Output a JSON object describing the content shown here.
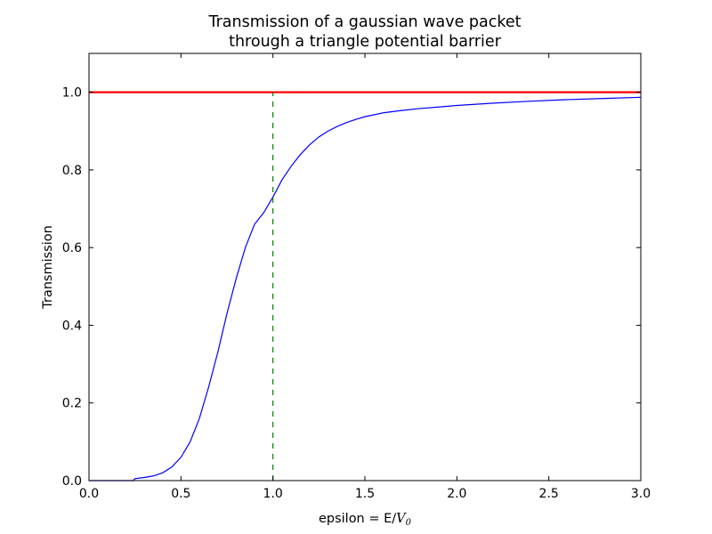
{
  "chart_data": {
    "type": "line",
    "title_lines": [
      "Transmission of a gaussian wave packet",
      "through a triangle potential barrier"
    ],
    "xlabel": {
      "prefix": "epsilon = E/",
      "var": "V",
      "sub": "0"
    },
    "ylabel": "Transmission",
    "xlim": [
      0.0,
      3.0
    ],
    "ylim": [
      0.0,
      1.1
    ],
    "xticks": [
      0.0,
      0.5,
      1.0,
      1.5,
      2.0,
      2.5,
      3.0
    ],
    "xtick_labels": [
      "0.0",
      "0.5",
      "1.0",
      "1.5",
      "2.0",
      "2.5",
      "3.0"
    ],
    "yticks": [
      0.0,
      0.2,
      0.4,
      0.6,
      0.8,
      1.0
    ],
    "ytick_labels": [
      "0.0",
      "0.2",
      "0.4",
      "0.6",
      "0.8",
      "1.0"
    ],
    "grid": false,
    "series": [
      {
        "style": "solid",
        "color": "#0000ff",
        "x": [
          0.0,
          0.1,
          0.2,
          0.24,
          0.25,
          0.3,
          0.35,
          0.4,
          0.45,
          0.5,
          0.55,
          0.6,
          0.65,
          0.7,
          0.75,
          0.8,
          0.85,
          0.9,
          0.95,
          1.0,
          1.05,
          1.1,
          1.15,
          1.2,
          1.25,
          1.3,
          1.35,
          1.4,
          1.45,
          1.5,
          1.6,
          1.7,
          1.8,
          1.9,
          2.0,
          2.2,
          2.4,
          2.6,
          2.8,
          3.0
        ],
        "y": [
          0.0,
          0.0,
          0.0,
          0.0,
          0.005,
          0.008,
          0.012,
          0.02,
          0.035,
          0.06,
          0.1,
          0.16,
          0.24,
          0.33,
          0.43,
          0.52,
          0.6,
          0.66,
          0.69,
          0.73,
          0.775,
          0.81,
          0.84,
          0.865,
          0.885,
          0.9,
          0.912,
          0.922,
          0.93,
          0.937,
          0.947,
          0.953,
          0.958,
          0.962,
          0.966,
          0.972,
          0.977,
          0.981,
          0.984,
          0.987
        ]
      },
      {
        "style": "solid",
        "color": "#ff0000",
        "x": [
          0.0,
          3.0
        ],
        "y": [
          1.0,
          1.0
        ]
      },
      {
        "style": "dashed",
        "color": "#008000",
        "x": [
          1.0,
          1.0
        ],
        "y": [
          0.0,
          1.0
        ]
      }
    ]
  }
}
